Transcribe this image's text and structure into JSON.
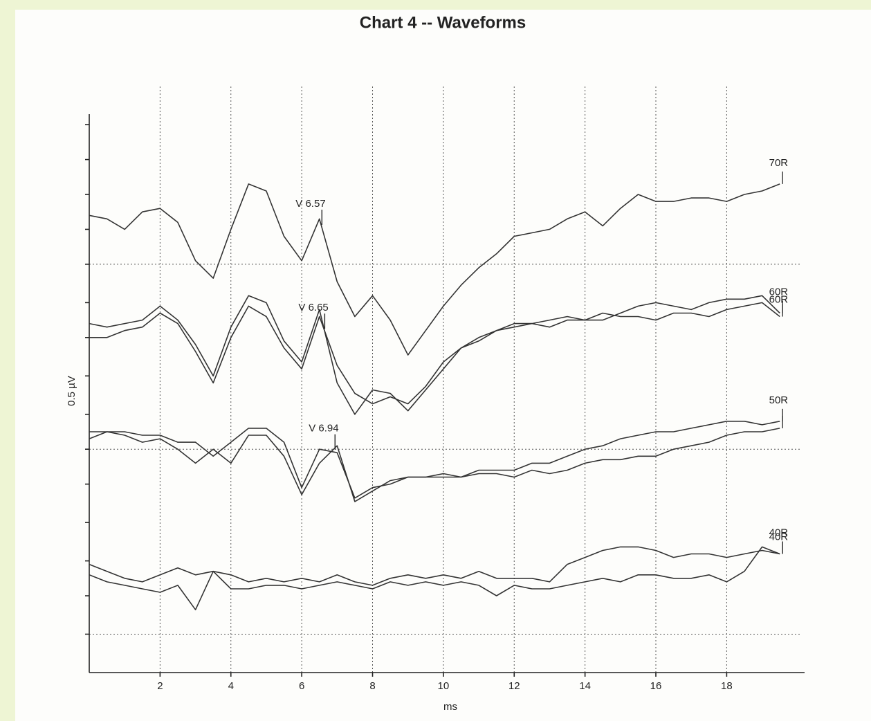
{
  "chart_data": {
    "type": "line",
    "title": "Chart 4 -- Waveforms",
    "x_label": "ms",
    "y_label": "0.5 µV",
    "x": [
      0,
      0.5,
      1,
      1.5,
      2,
      2.5,
      3,
      3.5,
      4,
      4.5,
      5,
      5.5,
      6,
      6.5,
      7,
      7.5,
      8,
      8.5,
      9,
      9.5,
      10,
      10.5,
      11,
      11.5,
      12,
      12.5,
      13,
      13.5,
      14,
      14.5,
      15,
      15.5,
      16,
      16.5,
      17,
      17.5,
      18,
      18.5,
      19,
      19.5
    ],
    "series": [
      {
        "name": "70R",
        "color": "#333333",
        "annotation": {
          "label": "V 6.57",
          "x": 6.57
        },
        "values": [
          12.1,
          12.0,
          11.7,
          12.2,
          12.3,
          11.9,
          10.8,
          10.3,
          11.7,
          13.0,
          12.8,
          11.5,
          10.8,
          12.0,
          10.2,
          9.2,
          9.8,
          9.1,
          8.1,
          8.8,
          9.5,
          10.1,
          10.6,
          11.0,
          11.5,
          11.6,
          11.7,
          12.0,
          12.2,
          11.8,
          12.3,
          12.7,
          12.5,
          12.5,
          12.6,
          12.6,
          12.5,
          12.7,
          12.8,
          13.0
        ]
      },
      {
        "name": "60R",
        "color": "#333333",
        "annotation": {
          "label": "V 6.65",
          "x": 6.65
        },
        "values": [
          9.0,
          8.9,
          9.0,
          9.1,
          9.5,
          9.1,
          8.4,
          7.5,
          8.9,
          9.8,
          9.6,
          8.5,
          7.9,
          9.4,
          7.3,
          6.4,
          7.1,
          7.0,
          6.5,
          7.1,
          7.7,
          8.3,
          8.6,
          8.8,
          9.0,
          9.0,
          9.1,
          9.2,
          9.1,
          9.1,
          9.3,
          9.5,
          9.6,
          9.5,
          9.4,
          9.6,
          9.7,
          9.7,
          9.8,
          9.3
        ]
      },
      {
        "name": "60R",
        "color": "#333333",
        "values": [
          8.6,
          8.6,
          8.8,
          8.9,
          9.3,
          9.0,
          8.2,
          7.3,
          8.6,
          9.5,
          9.2,
          8.3,
          7.7,
          9.2,
          7.8,
          7.0,
          6.7,
          6.9,
          6.7,
          7.2,
          7.9,
          8.3,
          8.5,
          8.8,
          8.9,
          9.0,
          8.9,
          9.1,
          9.1,
          9.3,
          9.2,
          9.2,
          9.1,
          9.3,
          9.3,
          9.2,
          9.4,
          9.5,
          9.6,
          9.2
        ]
      },
      {
        "name": "50R",
        "color": "#333333",
        "annotation": {
          "label": "V 6.94",
          "x": 6.94
        },
        "values": [
          5.9,
          5.9,
          5.9,
          5.8,
          5.8,
          5.6,
          5.6,
          5.2,
          5.6,
          6.0,
          6.0,
          5.6,
          4.3,
          5.4,
          5.3,
          4.0,
          4.3,
          4.4,
          4.6,
          4.6,
          4.7,
          4.6,
          4.8,
          4.8,
          4.8,
          5.0,
          5.0,
          5.2,
          5.4,
          5.5,
          5.7,
          5.8,
          5.9,
          5.9,
          6.0,
          6.1,
          6.2,
          6.2,
          6.1,
          6.2
        ]
      },
      {
        "color": "#333333",
        "values": [
          5.7,
          5.9,
          5.8,
          5.6,
          5.7,
          5.4,
          5.0,
          5.4,
          5.0,
          5.8,
          5.8,
          5.2,
          4.1,
          5.0,
          5.5,
          3.9,
          4.2,
          4.5,
          4.6,
          4.6,
          4.6,
          4.6,
          4.7,
          4.7,
          4.6,
          4.8,
          4.7,
          4.8,
          5.0,
          5.1,
          5.1,
          5.2,
          5.2,
          5.4,
          5.5,
          5.6,
          5.8,
          5.9,
          5.9,
          6.0
        ]
      },
      {
        "name": "40R",
        "color": "#333333",
        "values": [
          2.1,
          1.9,
          1.7,
          1.6,
          1.8,
          2.0,
          1.8,
          1.9,
          1.8,
          1.6,
          1.7,
          1.6,
          1.7,
          1.6,
          1.8,
          1.6,
          1.5,
          1.7,
          1.8,
          1.7,
          1.8,
          1.7,
          1.9,
          1.7,
          1.7,
          1.7,
          1.6,
          2.1,
          2.3,
          2.5,
          2.6,
          2.6,
          2.5,
          2.3,
          2.4,
          2.4,
          2.3,
          2.4,
          2.5,
          2.4
        ]
      },
      {
        "name": "40R",
        "color": "#333333",
        "values": [
          1.8,
          1.6,
          1.5,
          1.4,
          1.3,
          1.5,
          0.8,
          1.9,
          1.4,
          1.4,
          1.5,
          1.5,
          1.4,
          1.5,
          1.6,
          1.5,
          1.4,
          1.6,
          1.5,
          1.6,
          1.5,
          1.6,
          1.5,
          1.2,
          1.5,
          1.4,
          1.4,
          1.5,
          1.6,
          1.7,
          1.6,
          1.8,
          1.8,
          1.7,
          1.7,
          1.8,
          1.6,
          1.9,
          2.6,
          2.4
        ]
      }
    ],
    "xlim": [
      0,
      20.2
    ],
    "xticks": [
      2,
      4,
      6,
      8,
      10,
      12,
      14,
      16,
      18
    ],
    "ylim": [
      -1,
      15
    ],
    "yticks": [
      0.1,
      1.2,
      2.2,
      3.3,
      4.4,
      5.4,
      6.4,
      7.5,
      8.6,
      9.6,
      10.7,
      11.7,
      12.7,
      13.7,
      14.7
    ],
    "baselines": [
      10.7,
      5.4,
      0.1
    ],
    "grid": true
  }
}
